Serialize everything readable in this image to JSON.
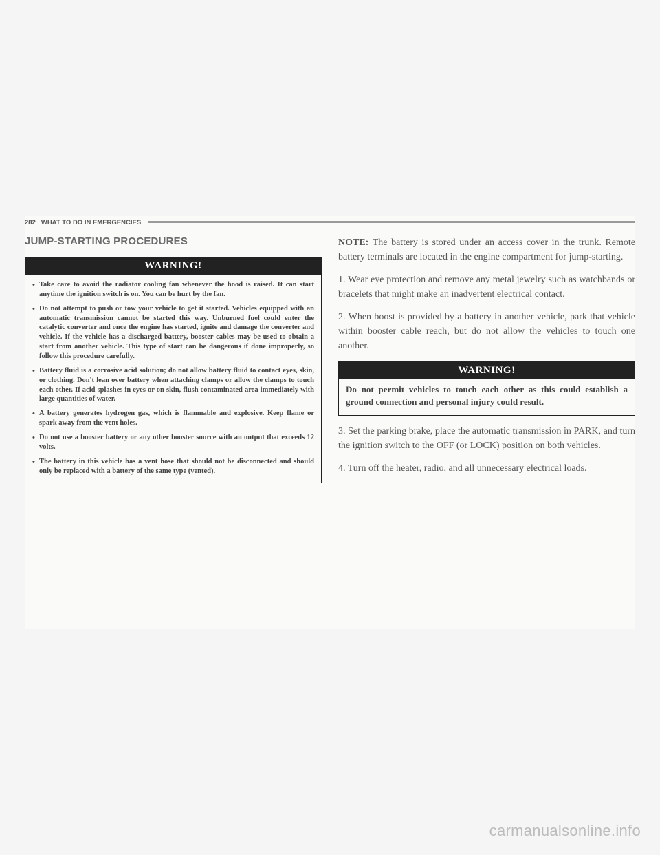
{
  "header": {
    "page_number": "282",
    "section": "WHAT TO DO IN EMERGENCIES"
  },
  "left": {
    "title": "JUMP-STARTING PROCEDURES",
    "warning": {
      "label": "WARNING!",
      "items": [
        "Take care to avoid the radiator cooling fan whenever the hood is raised. It can start anytime the ignition switch is on. You can be hurt by the fan.",
        "Do not attempt to push or tow your vehicle to get it started. Vehicles equipped with an automatic transmission cannot be started this way. Unburned fuel could enter the catalytic converter and once the engine has started, ignite and damage the converter and vehicle. If the vehicle has a discharged battery, booster cables may be used to obtain a start from another vehicle. This type of start can be dangerous if done improperly, so follow this procedure carefully.",
        "Battery fluid is a corrosive acid solution; do not allow battery fluid to contact eyes, skin, or clothing. Don't lean over battery when attaching clamps or allow the clamps to touch each other. If acid splashes in eyes or on skin, flush contaminated area immediately with large quantities of water.",
        "A battery generates hydrogen gas, which is flammable and explosive. Keep flame or spark away from the vent holes.",
        "Do not use a booster battery or any other booster source with an output that exceeds 12 volts.",
        "The battery in this vehicle has a vent hose that should not be disconnected and should only be replaced with a battery of the same type (vented)."
      ]
    }
  },
  "right": {
    "note_label": "NOTE:",
    "note_text": "The battery is stored under an access cover in the trunk. Remote battery terminals are located in the engine compartment for jump-starting.",
    "step1": "1. Wear eye protection and remove any metal jewelry such as watchbands or bracelets that might make an inadvertent electrical contact.",
    "step2": "2. When boost is provided by a battery in another vehicle, park that vehicle within booster cable reach, but do not allow the vehicles to touch one another.",
    "warning": {
      "label": "WARNING!",
      "text": "Do not permit vehicles to touch each other as this could establish a ground connection and personal injury could result."
    },
    "step3": "3. Set the parking brake, place the automatic transmission in PARK, and turn the ignition switch to the OFF (or LOCK) position on both vehicles.",
    "step4": "4. Turn off the heater, radio, and all unnecessary electrical loads."
  },
  "watermark": "carmanualsonline.info"
}
